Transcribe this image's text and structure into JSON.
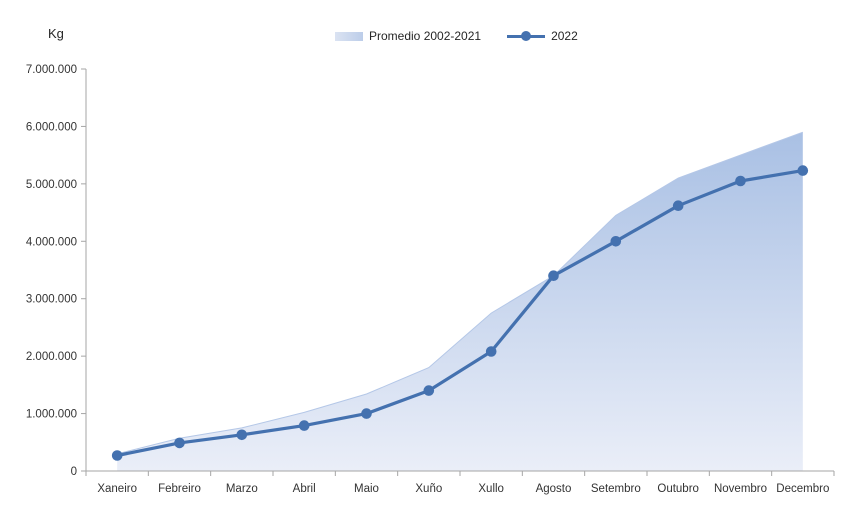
{
  "y_axis_title": "Kg",
  "legend": {
    "items": [
      {
        "label": "Promedio 2002-2021",
        "swatch": "area-gradient-swatch"
      },
      {
        "label": "2022",
        "swatch": "line-marker-swatch"
      }
    ]
  },
  "colors": {
    "line_2022": "#4471AF",
    "area_gradient_top": "#A9C0E4",
    "area_gradient_bottom": "#EAEEF8",
    "area_edge": "#B4C7E7",
    "axis": "#A6A6A6",
    "tick_label": "#333333"
  },
  "chart_data": {
    "type": "combo",
    "subtypes": [
      "area",
      "line"
    ],
    "categories": [
      "Xaneiro",
      "Febreiro",
      "Marzo",
      "Abril",
      "Maio",
      "Xuño",
      "Xullo",
      "Agosto",
      "Setembro",
      "Outubro",
      "Novembro",
      "Decembro"
    ],
    "series": [
      {
        "name": "Promedio 2002-2021",
        "type": "area",
        "values": [
          300000,
          570000,
          750000,
          1020000,
          1340000,
          1800000,
          2750000,
          3400000,
          4450000,
          5100000,
          5500000,
          5900000
        ]
      },
      {
        "name": "2022",
        "type": "line",
        "values": [
          270000,
          490000,
          630000,
          790000,
          1000000,
          1400000,
          2080000,
          3400000,
          4000000,
          4620000,
          5050000,
          5230000
        ]
      }
    ],
    "title": "",
    "xlabel": "",
    "ylabel": "Kg",
    "ylim": [
      0,
      7000000
    ],
    "ytick_step": 1000000,
    "ytick_labels": [
      "0",
      "1.000.000",
      "2.000.000",
      "3.000.000",
      "4.000.000",
      "5.000.000",
      "6.000.000",
      "7.000.000"
    ],
    "grid": false,
    "legend_position": "top"
  }
}
